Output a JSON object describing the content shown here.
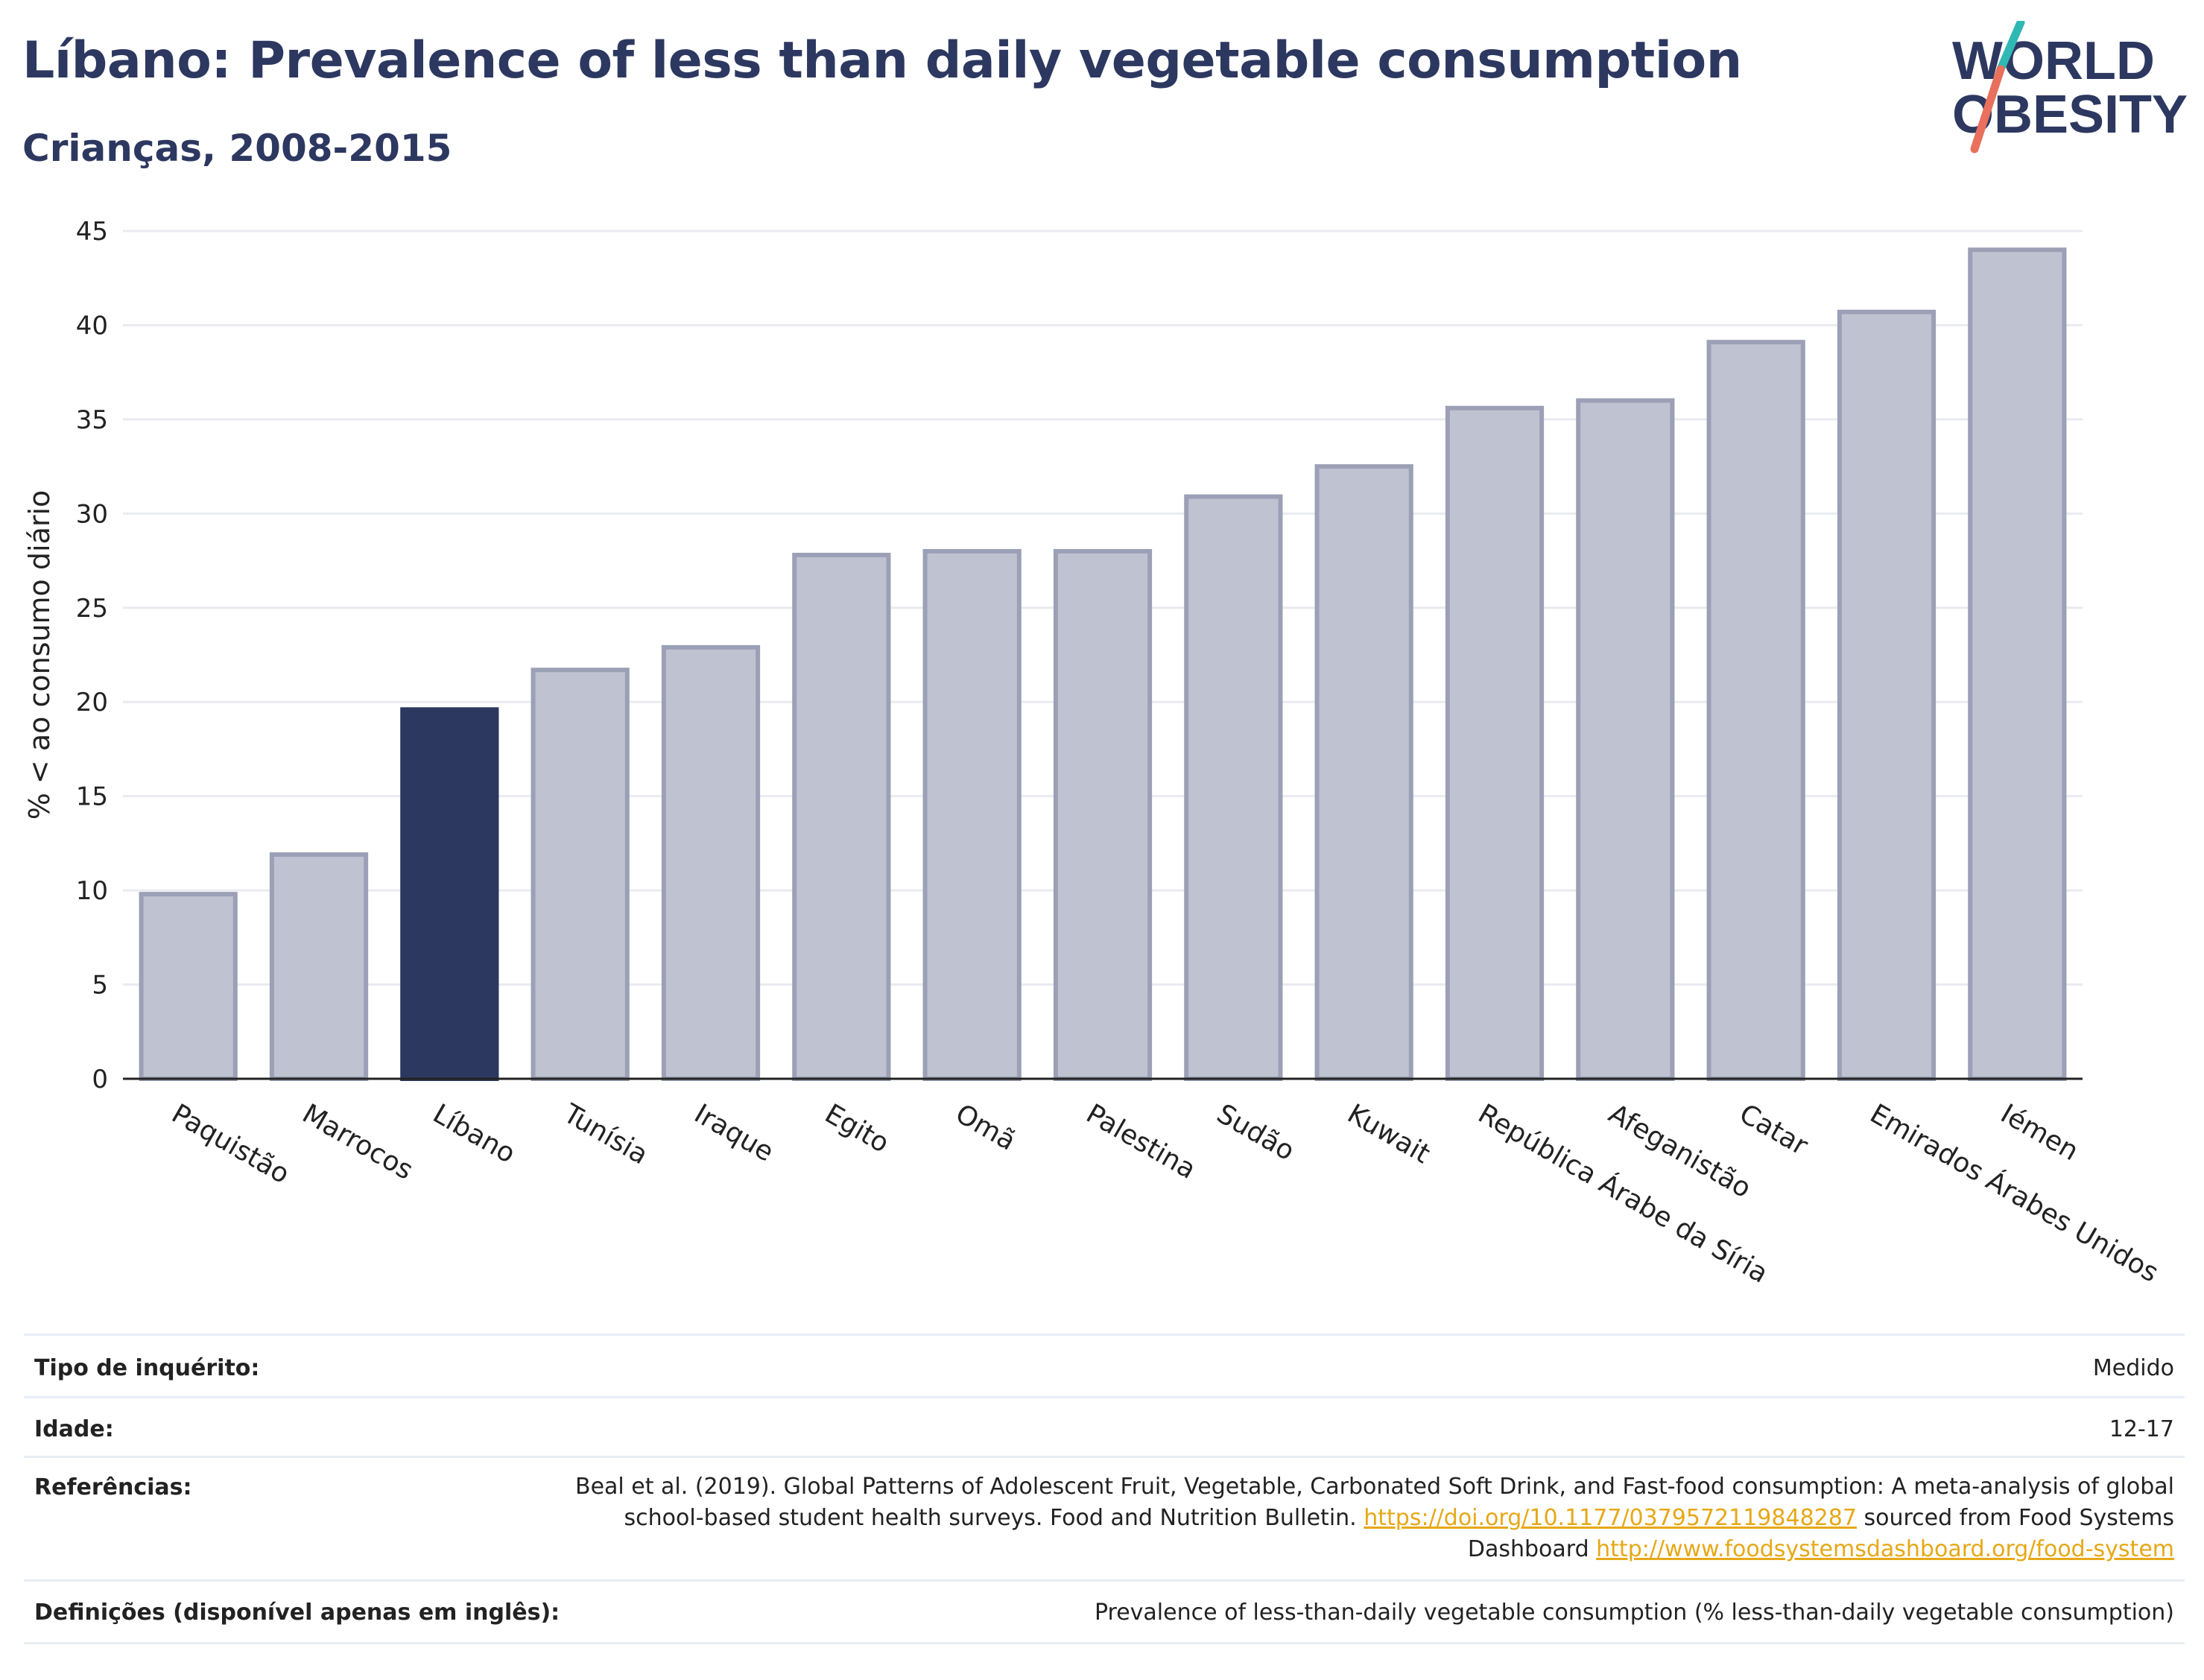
{
  "header": {
    "title": "Líbano: Prevalence of less than daily vegetable consumption",
    "subtitle": "Crianças, 2008-2015"
  },
  "logo": {
    "line1": "WORLD",
    "line2": "OBESITY"
  },
  "colors": {
    "highlight": "#2d3861",
    "bar_fill": "#bfc3d1",
    "bar_stroke": "#9ba0b6",
    "grid": "#e9ebf0",
    "link": "#e6a817"
  },
  "chart_data": {
    "type": "bar",
    "title": "Líbano: Prevalence of less than daily vegetable consumption",
    "subtitle": "Crianças, 2008-2015",
    "ylabel": "% < ao consumo diário",
    "xlabel": "",
    "ylim": [
      0,
      45
    ],
    "yticks": [
      0,
      5,
      10,
      15,
      20,
      25,
      30,
      35,
      40,
      45
    ],
    "grid": true,
    "highlight": "Líbano",
    "categories": [
      "Paquistão",
      "Marrocos",
      "Líbano",
      "Tunísia",
      "Iraque",
      "Egito",
      "Omã",
      "Palestina",
      "Sudão",
      "Kuwait",
      "República Árabe da Síria",
      "Afeganistão",
      "Catar",
      "Emirados Árabes Unidos",
      "Iémen"
    ],
    "values": [
      9.8,
      11.9,
      19.6,
      21.7,
      22.9,
      27.8,
      28.0,
      28.0,
      30.9,
      32.5,
      35.6,
      36.0,
      39.1,
      40.7,
      44.0
    ]
  },
  "meta": {
    "survey_type": {
      "label": "Tipo de inquérito:",
      "value": "Medido"
    },
    "age": {
      "label": "Idade:",
      "value": "12-17"
    },
    "references": {
      "label": "Referências:",
      "text1": "Beal et al. (2019). Global Patterns of Adolescent Fruit, Vegetable, Carbonated Soft Drink, and Fast-food consumption: A meta-analysis of global school-based student health surveys. Food and Nutrition Bulletin. ",
      "link1": "https://doi.org/10.1177/0379572119848287",
      "text2": " sourced from Food Systems Dashboard ",
      "link2": "http://www.foodsystemsdashboard.org/food-system"
    },
    "definitions": {
      "label": "Definições (disponível apenas em inglês):",
      "value": "Prevalence of less-than-daily vegetable consumption (% less-than-daily vegetable consumption)"
    }
  }
}
